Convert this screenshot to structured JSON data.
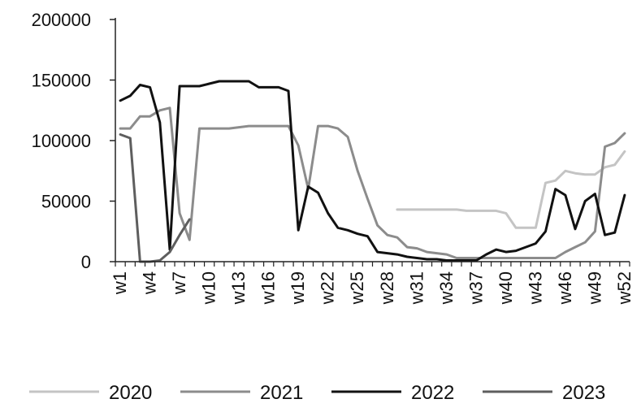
{
  "chart_data": {
    "type": "line",
    "title": "",
    "xlabel": "",
    "ylabel": "",
    "ylim": [
      0,
      200000
    ],
    "yticks": [
      0,
      50000,
      100000,
      150000,
      200000
    ],
    "ytick_labels": [
      "0",
      "50000",
      "100000",
      "150000",
      "200000"
    ],
    "x_labels": [
      "w1",
      "w4",
      "w7",
      "w10",
      "w13",
      "w16",
      "w19",
      "w22",
      "w25",
      "w28",
      "w31",
      "w34",
      "w37",
      "w40",
      "w43",
      "w46",
      "w49",
      "w52"
    ],
    "grid": false,
    "legend_position": "bottom",
    "series": [
      {
        "name": "2020",
        "color": "#c4c4c4",
        "start_week": 29,
        "values": [
          43000,
          43000,
          43000,
          43000,
          43000,
          43000,
          43000,
          42000,
          42000,
          42000,
          42000,
          40000,
          28000,
          28000,
          28000,
          65000,
          67000,
          75000,
          73000,
          72000,
          72000,
          78000,
          80000,
          91000
        ]
      },
      {
        "name": "2021",
        "color": "#8c8c8c",
        "start_week": 1,
        "values": [
          110000,
          110000,
          120000,
          120000,
          125000,
          127000,
          40000,
          18000,
          110000,
          110000,
          110000,
          110000,
          111000,
          112000,
          112000,
          112000,
          112000,
          112000,
          96000,
          60000,
          112000,
          112000,
          110000,
          103000,
          75000,
          52000,
          30000,
          22000,
          20000,
          12000,
          11000,
          8000,
          7000,
          6000,
          3000,
          3000,
          3000,
          3000,
          3000,
          3000,
          3000,
          3000,
          3000,
          3000,
          3000,
          8000,
          12000,
          16000,
          25000,
          95000,
          98000,
          106000
        ]
      },
      {
        "name": "2022",
        "color": "#111111",
        "start_week": 1,
        "values": [
          133000,
          137000,
          146000,
          144000,
          115000,
          10000,
          145000,
          145000,
          145000,
          147000,
          149000,
          149000,
          149000,
          149000,
          144000,
          144000,
          144000,
          141000,
          26000,
          62000,
          57000,
          40000,
          28000,
          26000,
          23000,
          21000,
          8000,
          7000,
          6000,
          4000,
          3000,
          2000,
          2000,
          1000,
          1000,
          1000,
          1000,
          6000,
          10000,
          8000,
          9000,
          12000,
          15000,
          25000,
          60000,
          55000,
          27000,
          50000,
          56000,
          22000,
          24000,
          55000
        ]
      },
      {
        "name": "2023",
        "color": "#5e5e5e",
        "start_week": 1,
        "values": [
          105000,
          102000,
          0,
          0,
          1000,
          8000,
          22000,
          35000
        ]
      }
    ]
  }
}
